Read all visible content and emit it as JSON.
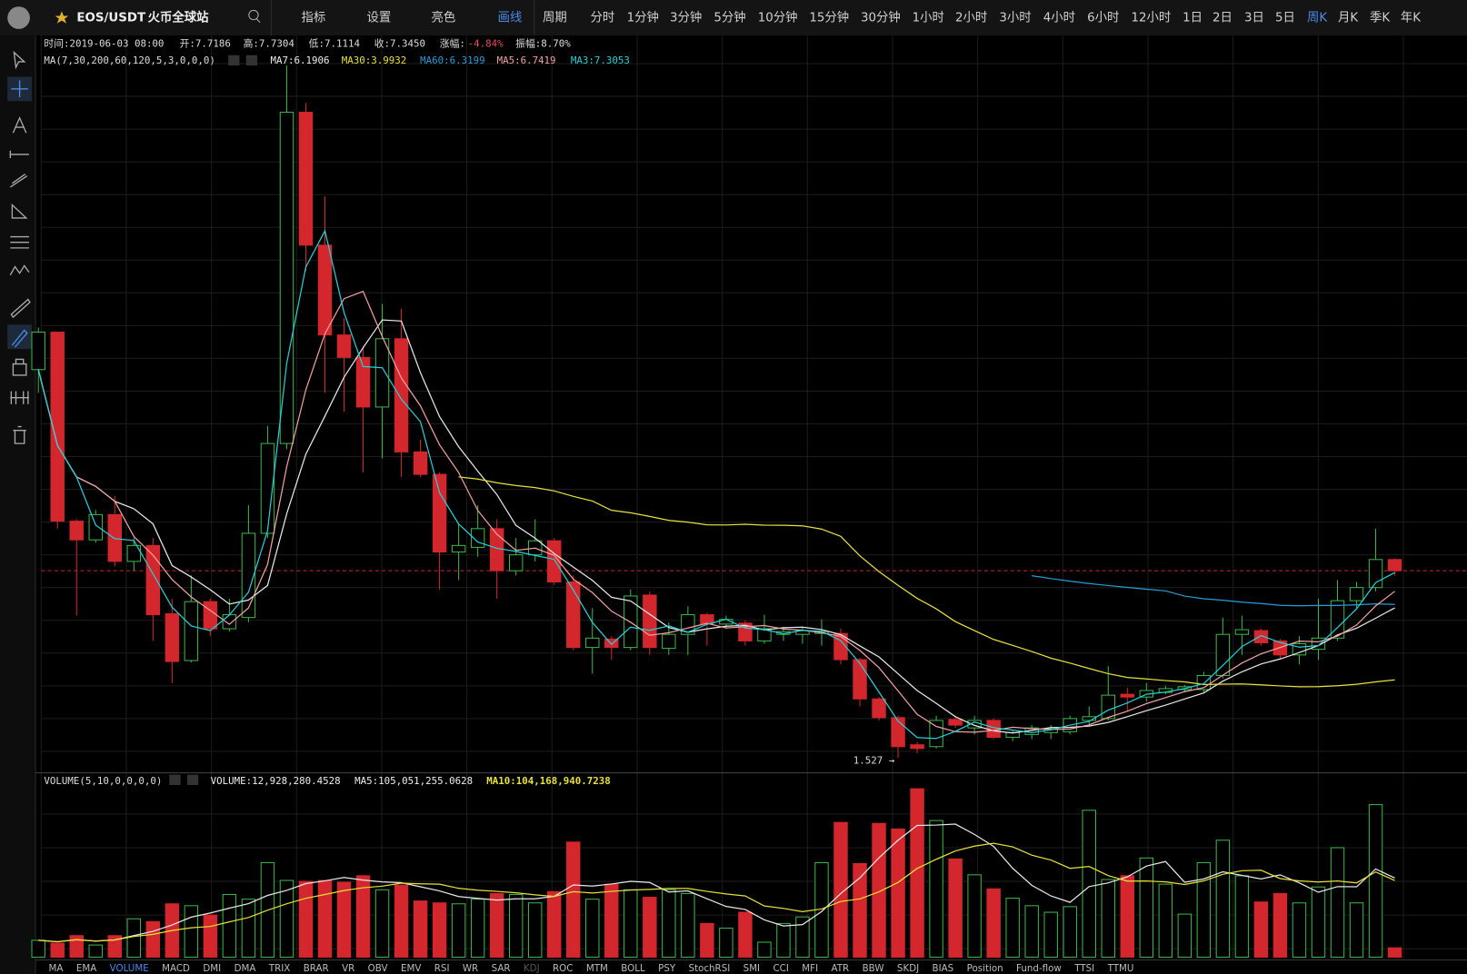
{
  "header": {
    "symbol": "EOS/USDT",
    "exchange": "火币全球站",
    "tools": [
      "指标",
      "设置",
      "亮色",
      "画线"
    ],
    "periods": [
      "周期",
      "分时",
      "1分钟",
      "3分钟",
      "5分钟",
      "10分钟",
      "15分钟",
      "30分钟",
      "1小时",
      "2小时",
      "3小时",
      "4小时",
      "6小时",
      "12小时",
      "1日",
      "2日",
      "3日",
      "5日",
      "周K",
      "月K",
      "季K",
      "年K"
    ]
  },
  "info": {
    "time": "时间:2019-06-03 08:00",
    "open": "开:7.7186",
    "high": "高:7.7304",
    "low": "低:7.1114",
    "close": "收:7.3450",
    "change_label": "涨幅:",
    "change": "-4.84%",
    "amplitude": "振幅:8.70%"
  },
  "ma": {
    "params": "MA(7,30,200,60,120,5,3,0,0,0)",
    "values": [
      "MA7:6.1906",
      "MA30:3.9932",
      "MA60:6.3199",
      "MA5:6.7419",
      "MA3:7.3053"
    ]
  },
  "min_label": "1.527 →",
  "volume": {
    "params": "VOLUME(5,10,0,0,0,0)",
    "values": [
      "VOLUME:12,928,280.4528",
      "MA5:105,051,255.0628",
      "MA10:104,168,940.7238"
    ]
  },
  "indicators": [
    "MA",
    "EMA",
    "VOLUME",
    "MACD",
    "DMI",
    "DMA",
    "TRIX",
    "BRAR",
    "VR",
    "OBV",
    "EMV",
    "RSI",
    "WR",
    "SAR",
    "KDJ",
    "ROC",
    "MTM",
    "BOLL",
    "PSY",
    "StochRSI",
    "SMI",
    "CCI",
    "MFI",
    "ATR",
    "BBW",
    "SKDJ",
    "BIAS",
    "Position",
    "Fund-flow",
    "TTSI",
    "TTMU"
  ]
}
